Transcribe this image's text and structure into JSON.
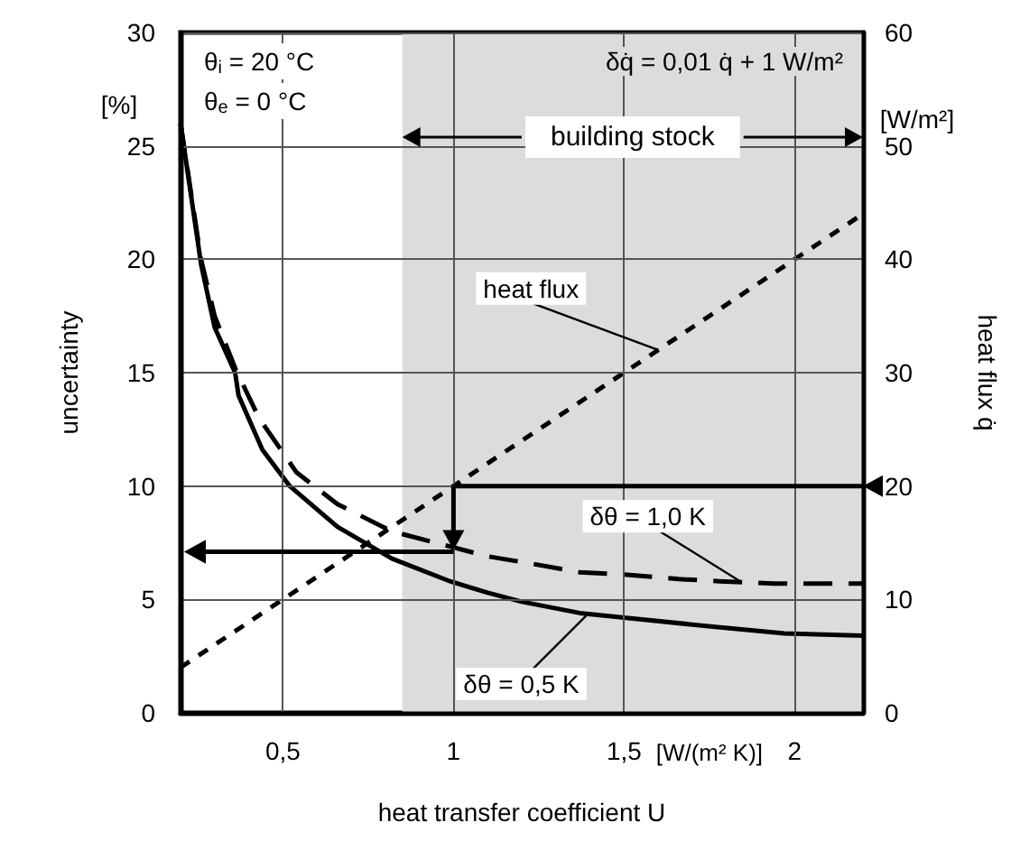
{
  "chart_data": {
    "type": "line",
    "xlabel": "heat transfer coefficient U",
    "ylabel": "uncertainty",
    "y2label": "heat flux q̇",
    "xlim": [
      0.2,
      2.2
    ],
    "xticks": [
      {
        "value": 0.5,
        "label": "0,5"
      },
      1,
      {
        "value": 1.5,
        "label": "1,5"
      },
      2
    ],
    "ylim": [
      0,
      30
    ],
    "yticks": [
      0,
      5,
      10,
      15,
      20,
      25,
      30
    ],
    "y2lim": [
      0,
      60
    ],
    "y2ticks": [
      0,
      10,
      20,
      30,
      40,
      50,
      60
    ],
    "grid": true,
    "marker": "none",
    "series": [
      {
        "color": "#000000",
        "line_style": "solid",
        "x": [
          0.2,
          0.26,
          0.3,
          0.36,
          0.37,
          0.44,
          0.52,
          0.66,
          0.82,
          0.99,
          1.1,
          1.2,
          1.37,
          1.5,
          1.76,
          1.97,
          2.2
        ],
        "values": [
          26,
          19.8,
          17,
          15,
          14,
          11.6,
          10,
          8.2,
          6.8,
          5.8,
          5.3,
          4.9,
          4.4,
          4.2,
          3.8,
          3.5,
          3.4
        ]
      },
      {
        "color": "#000000",
        "line_style": "dashed",
        "x": [
          0.2,
          0.26,
          0.3,
          0.36,
          0.43,
          0.54,
          0.66,
          0.82,
          1.1,
          1.22,
          1.37,
          1.5,
          1.66,
          1.78,
          1.94,
          2.2
        ],
        "values": [
          26,
          20,
          17.5,
          15.2,
          13,
          10.6,
          9.2,
          8,
          6.9,
          6.6,
          6.2,
          6.1,
          5.9,
          5.8,
          5.7,
          5.7
        ]
      },
      {
        "color": "#000000",
        "line_style": "dotted",
        "axis": "y2",
        "x": [
          0.2,
          2.2
        ],
        "values": [
          4,
          44
        ]
      }
    ],
    "bands": [
      {
        "axis": "x",
        "from": 0.85,
        "to": 2.2,
        "label": "building stock",
        "color": "#dcdcdc"
      }
    ],
    "ref_lines": [
      {
        "axis": "x",
        "value": 1
      },
      {
        "axis": "y2",
        "value": 20
      },
      {
        "axis": "y",
        "value": 7.1
      }
    ],
    "annotations": [
      "θ$_{i}$ = 20 °C",
      "θ$_{e}$ = 0 °C",
      "δq̇ = 0,01 q̇ + 1 W/m²",
      {
        "text": "heat flux",
        "x": 1.6,
        "y": 16
      },
      {
        "text": "δθ = 1,0 K",
        "x": 1.84,
        "y": 5.8
      },
      {
        "text": "δθ = 0,5 K",
        "x": 1.39,
        "y": 4.3
      },
      "[%]",
      "[W/m²]",
      "[W/(m² K)]"
    ]
  }
}
